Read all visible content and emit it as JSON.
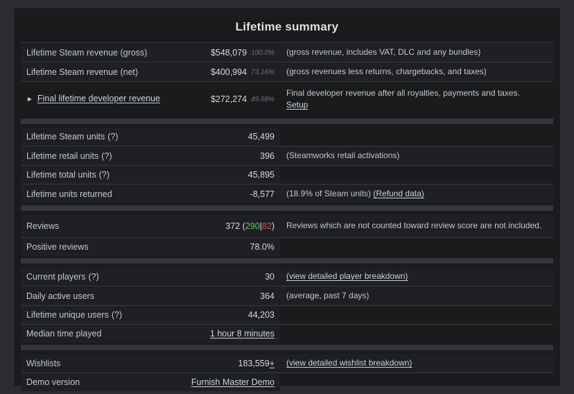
{
  "panel": {
    "title": "Lifetime summary"
  },
  "colors": {
    "page_background": "#2b2c30",
    "panel_background": "#1a1b1d",
    "row_shade": "#1f2023",
    "section_divider": "#35363a",
    "row_separator": "#393a3d",
    "link": "#cdd3d6",
    "positive_reviews": "#66c05a",
    "negative_reviews": "#d0544b",
    "percent_text": "#6d7174"
  },
  "table": {
    "rows": [
      {
        "label": {
          "text": "Lifetime Steam revenue (gross)"
        },
        "value": [
          {
            "t": "$548,079"
          },
          {
            "t": "100.0%",
            "pct": true
          }
        ],
        "note": [
          {
            "t": "(gross revenue, includes VAT, DLC and any bundles)"
          }
        ],
        "shaded": true
      },
      {
        "label": {
          "text": "Lifetime Steam revenue (net)"
        },
        "value": [
          {
            "t": "$400,994"
          },
          {
            "t": "73.16%",
            "pct": true
          }
        ],
        "note": [
          {
            "t": "(gross revenues less returns, chargebacks, and taxes)"
          }
        ],
        "shaded": true
      },
      {
        "label": {
          "icon": "►",
          "icon_name": "expand-triangle-icon",
          "text": "Final lifetime developer revenue",
          "link": true,
          "name": "final-developer-revenue-link"
        },
        "value": [
          {
            "t": "$272,274"
          },
          {
            "t": "49.68%",
            "pct": true
          }
        ],
        "note": [
          {
            "t": "Final developer revenue after all royalties, payments and taxes."
          },
          {
            "t": "Setup",
            "link": true,
            "name": "setup-link",
            "newline": true
          }
        ],
        "shaded": false,
        "tall": true
      },
      {
        "spacer": true
      },
      {
        "label": {
          "text": "Lifetime Steam units",
          "help": "(?)"
        },
        "value": [
          {
            "t": "45,499"
          }
        ],
        "shaded": true
      },
      {
        "label": {
          "text": "Lifetime retail units",
          "help": "(?)"
        },
        "value": [
          {
            "t": "396"
          }
        ],
        "note": [
          {
            "t": "(Steamworks retail activations)"
          }
        ],
        "shaded": true
      },
      {
        "label": {
          "text": "Lifetime total units",
          "help": "(?)"
        },
        "value": [
          {
            "t": "45,895"
          }
        ],
        "shaded": true
      },
      {
        "label": {
          "text": "Lifetime units returned"
        },
        "value": [
          {
            "t": "-8,577"
          }
        ],
        "note": [
          {
            "t": "(18.9% of Steam units) "
          },
          {
            "t": "(Refund data)",
            "link": true,
            "name": "refund-data-link"
          }
        ],
        "shaded": true
      },
      {
        "spacer": true
      },
      {
        "label": {
          "text": "Reviews"
        },
        "value": [
          {
            "t": "372 ("
          },
          {
            "t": "290",
            "color": "positive",
            "name": "positive-review-count"
          },
          {
            "t": " | "
          },
          {
            "t": "82",
            "color": "negative",
            "name": "negative-review-count"
          },
          {
            "t": ")"
          }
        ],
        "note": [
          {
            "t": "Reviews which are not counted toward review score are not included."
          }
        ],
        "shaded": true,
        "tall": true
      },
      {
        "label": {
          "text": "Positive reviews"
        },
        "value": [
          {
            "t": "78.0%"
          }
        ],
        "shaded": true
      },
      {
        "spacer": true
      },
      {
        "label": {
          "text": "Current players",
          "help": "(?)"
        },
        "value": [
          {
            "t": "30"
          }
        ],
        "note": [
          {
            "t": "(view detailed player breakdown)",
            "link": true,
            "name": "player-breakdown-link"
          }
        ],
        "shaded": true
      },
      {
        "label": {
          "text": "Daily active users"
        },
        "value": [
          {
            "t": "364"
          }
        ],
        "note": [
          {
            "t": "(average, past 7 days)"
          }
        ],
        "shaded": true
      },
      {
        "label": {
          "text": "Lifetime unique users",
          "help": "(?)"
        },
        "value": [
          {
            "t": "44,203"
          }
        ],
        "shaded": true
      },
      {
        "label": {
          "text": "Median time played"
        },
        "value": [
          {
            "t": "1 hour 8 minutes",
            "link": true,
            "name": "median-time-played-link"
          }
        ],
        "shaded": true
      },
      {
        "spacer": true
      },
      {
        "label": {
          "text": "Wishlists"
        },
        "value": [
          {
            "t": "183,559 "
          },
          {
            "t": "+",
            "link": true,
            "name": "wishlist-plus-link"
          }
        ],
        "note": [
          {
            "t": "(view detailed wishlist breakdown)",
            "link": true,
            "name": "wishlist-breakdown-link"
          }
        ],
        "shaded": true
      },
      {
        "label": {
          "text": "Demo version"
        },
        "value": [
          {
            "t": "Furnish Master Demo",
            "link": true,
            "name": "demo-version-link"
          }
        ],
        "shaded": true
      }
    ]
  }
}
